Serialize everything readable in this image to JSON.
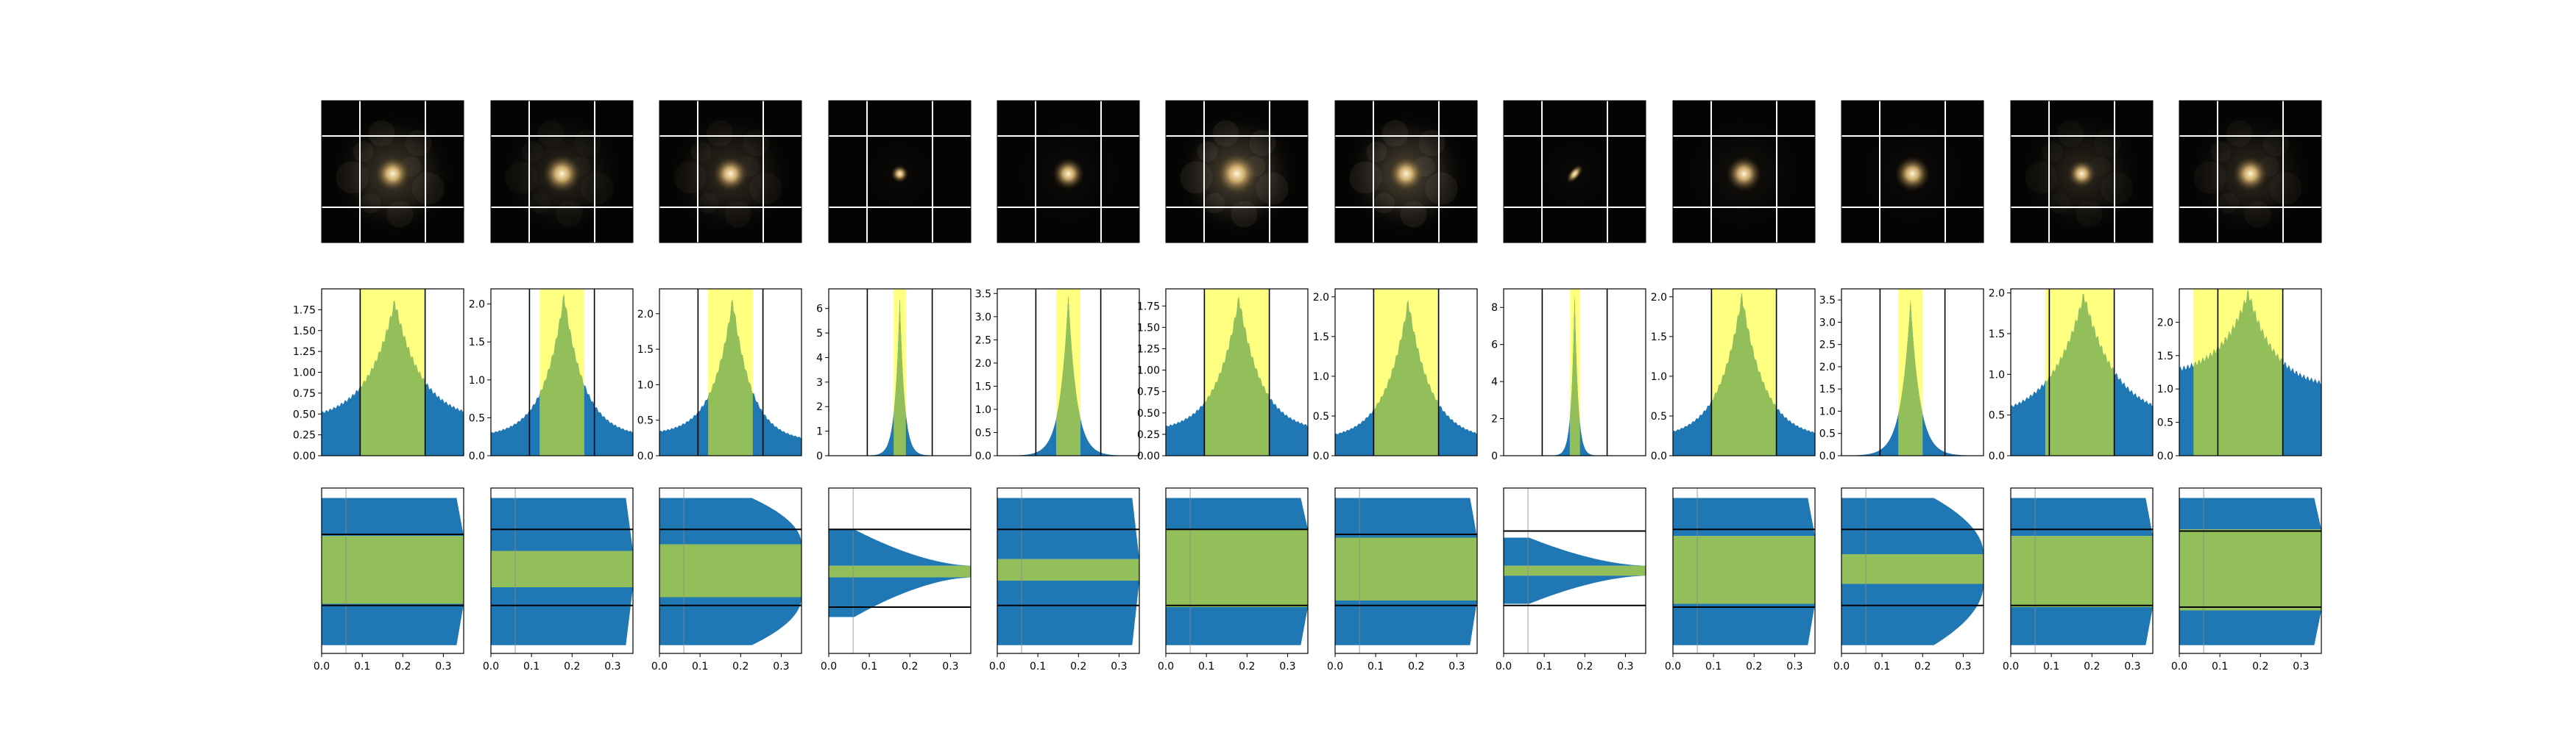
{
  "figure": {
    "n_columns": 12,
    "rows": [
      "galaxy images",
      "profile histograms",
      "cumulative bars"
    ]
  },
  "chart_data": [
    {
      "type": "image-grid",
      "description": "Galaxy images with overlaid white grid lines",
      "images": [
        {
          "core_size": 1.0,
          "diffuse": 0.8,
          "shape": "round"
        },
        {
          "core_size": 1.1,
          "diffuse": 0.5,
          "shape": "round"
        },
        {
          "core_size": 1.0,
          "diffuse": 0.6,
          "shape": "round"
        },
        {
          "core_size": 0.5,
          "diffuse": 0.0,
          "shape": "compact"
        },
        {
          "core_size": 0.9,
          "diffuse": 0.05,
          "shape": "round"
        },
        {
          "core_size": 1.2,
          "diffuse": 1.0,
          "shape": "round"
        },
        {
          "core_size": 1.0,
          "diffuse": 1.0,
          "shape": "round"
        },
        {
          "core_size": 0.7,
          "diffuse": 0.0,
          "shape": "elongated"
        },
        {
          "core_size": 1.0,
          "diffuse": 0.15,
          "shape": "round"
        },
        {
          "core_size": 1.0,
          "diffuse": 0.05,
          "shape": "round"
        },
        {
          "core_size": 0.8,
          "diffuse": 0.5,
          "shape": "round"
        },
        {
          "core_size": 1.0,
          "diffuse": 0.55,
          "shape": "round"
        }
      ]
    },
    {
      "type": "area",
      "description": "Distribution histograms with highlighted intervals",
      "xlim": [
        0,
        0.35
      ],
      "panels": [
        {
          "ylim": [
            0,
            2.0
          ],
          "yticks": [
            0.0,
            0.25,
            0.5,
            0.75,
            1.0,
            1.25,
            1.5,
            1.75
          ],
          "peak": 1.85,
          "center": 0.18,
          "width": 0.12,
          "base": 0.42,
          "right_base": 0.42,
          "highlight": [
            0.095,
            0.255
          ],
          "vlines": [
            0.095,
            0.255
          ]
        },
        {
          "ylim": [
            0,
            2.2
          ],
          "yticks": [
            0.0,
            0.5,
            1.0,
            1.5,
            2.0
          ],
          "peak": 2.12,
          "center": 0.18,
          "width": 0.09,
          "base": 0.25,
          "right_base": 0.25,
          "highlight": [
            0.12,
            0.23
          ],
          "vlines": [
            0.095,
            0.255
          ]
        },
        {
          "ylim": [
            0,
            2.35
          ],
          "yticks": [
            0.0,
            0.5,
            1.0,
            1.5,
            2.0
          ],
          "peak": 2.2,
          "center": 0.18,
          "width": 0.085,
          "base": 0.3,
          "right_base": 0.2,
          "highlight": [
            0.12,
            0.23
          ],
          "vlines": [
            0.095,
            0.255
          ]
        },
        {
          "ylim": [
            0,
            6.8
          ],
          "yticks": [
            0,
            1,
            2,
            3,
            4,
            5,
            6
          ],
          "peak": 6.4,
          "center": 0.175,
          "width": 0.025,
          "base": 0.0,
          "right_base": 0.0,
          "highlight": [
            0.16,
            0.19
          ],
          "vlines": [
            0.095,
            0.255
          ]
        },
        {
          "ylim": [
            0,
            3.6
          ],
          "yticks": [
            0.0,
            0.5,
            1.0,
            1.5,
            2.0,
            2.5,
            3.0,
            3.5
          ],
          "peak": 3.45,
          "center": 0.175,
          "width": 0.045,
          "base": 0.0,
          "right_base": 0.0,
          "highlight": [
            0.145,
            0.205
          ],
          "vlines": [
            0.095,
            0.255
          ]
        },
        {
          "ylim": [
            0,
            1.95
          ],
          "yticks": [
            0.0,
            0.25,
            0.5,
            0.75,
            1.0,
            1.25,
            1.5,
            1.75
          ],
          "peak": 1.85,
          "center": 0.18,
          "width": 0.1,
          "base": 0.28,
          "right_base": 0.28,
          "highlight": [
            0.095,
            0.255
          ],
          "vlines": [
            0.095,
            0.255
          ]
        },
        {
          "ylim": [
            0,
            2.1
          ],
          "yticks": [
            0.0,
            0.5,
            1.0,
            1.5,
            2.0
          ],
          "peak": 1.95,
          "center": 0.18,
          "width": 0.1,
          "base": 0.2,
          "right_base": 0.2,
          "highlight": [
            0.095,
            0.255
          ],
          "vlines": [
            0.095,
            0.255
          ]
        },
        {
          "ylim": [
            0,
            9.0
          ],
          "yticks": [
            0,
            2,
            4,
            6,
            8
          ],
          "peak": 8.6,
          "center": 0.175,
          "width": 0.018,
          "base": 0.0,
          "right_base": 0.0,
          "highlight": [
            0.163,
            0.188
          ],
          "vlines": [
            0.095,
            0.255
          ]
        },
        {
          "ylim": [
            0,
            2.1
          ],
          "yticks": [
            0.0,
            0.5,
            1.0,
            1.5,
            2.0
          ],
          "peak": 2.02,
          "center": 0.17,
          "width": 0.1,
          "base": 0.22,
          "right_base": 0.22,
          "highlight": [
            0.095,
            0.255
          ],
          "vlines": [
            0.095,
            0.255
          ]
        },
        {
          "ylim": [
            0,
            3.75
          ],
          "yticks": [
            0.0,
            0.5,
            1.0,
            1.5,
            2.0,
            2.5,
            3.0,
            3.5
          ],
          "peak": 3.5,
          "center": 0.17,
          "width": 0.05,
          "base": 0.05,
          "right_base": 0.05,
          "highlight": [
            0.14,
            0.2
          ],
          "vlines": [
            0.095,
            0.255
          ]
        },
        {
          "ylim": [
            0,
            2.05
          ],
          "yticks": [
            0.0,
            0.5,
            1.0,
            1.5,
            2.0
          ],
          "peak": 1.98,
          "center": 0.18,
          "width": 0.14,
          "base": 0.45,
          "right_base": 0.45,
          "highlight": [
            0.085,
            0.255
          ],
          "vlines": [
            0.095,
            0.255
          ]
        },
        {
          "ylim": [
            0,
            2.5
          ],
          "yticks": [
            0.0,
            0.5,
            1.0,
            1.5,
            2.0
          ],
          "peak": 2.45,
          "center": 0.17,
          "width": 0.12,
          "base": 1.2,
          "right_base": 1.0,
          "highlight": [
            0.035,
            0.255
          ],
          "vlines": [
            0.095,
            0.255
          ]
        }
      ]
    },
    {
      "type": "bar",
      "description": "Horizontal band plots with green highlighted interval",
      "xlim": [
        0,
        0.35
      ],
      "xticks": [
        0.0,
        0.1,
        0.2,
        0.3
      ],
      "xticklabels": [
        "0.0",
        "0.1",
        "0.2",
        "0.3"
      ],
      "panels": [
        {
          "top_band": [
            0.06,
            0.29
          ],
          "green": [
            0.29,
            0.7
          ],
          "bottom_band": [
            0.7,
            0.95
          ],
          "lines": [
            0.28,
            0.71
          ],
          "shape": "flat"
        },
        {
          "top_band": [
            0.06,
            0.38
          ],
          "green": [
            0.38,
            0.6
          ],
          "bottom_band": [
            0.6,
            0.95
          ],
          "lines": [
            0.25,
            0.71
          ],
          "shape": "flat"
        },
        {
          "top_band": [
            0.06,
            0.34
          ],
          "green": [
            0.34,
            0.66
          ],
          "bottom_band": [
            0.66,
            0.95
          ],
          "lines": [
            0.25,
            0.71
          ],
          "shape": "taper"
        },
        {
          "top_band": [
            0.25,
            0.47
          ],
          "green": [
            0.47,
            0.54
          ],
          "bottom_band": [
            0.54,
            0.78
          ],
          "lines": [
            0.25,
            0.72
          ],
          "shape": "funnel"
        },
        {
          "top_band": [
            0.06,
            0.43
          ],
          "green": [
            0.43,
            0.56
          ],
          "bottom_band": [
            0.56,
            0.95
          ],
          "lines": [
            0.25,
            0.71
          ],
          "shape": "flat"
        },
        {
          "top_band": [
            0.06,
            0.25
          ],
          "green": [
            0.25,
            0.72
          ],
          "bottom_band": [
            0.72,
            0.95
          ],
          "lines": [
            0.25,
            0.71
          ],
          "shape": "flat"
        },
        {
          "top_band": [
            0.06,
            0.3
          ],
          "green": [
            0.3,
            0.68
          ],
          "bottom_band": [
            0.68,
            0.95
          ],
          "lines": [
            0.28,
            0.71
          ],
          "shape": "flat"
        },
        {
          "top_band": [
            0.3,
            0.47
          ],
          "green": [
            0.47,
            0.53
          ],
          "bottom_band": [
            0.53,
            0.7
          ],
          "lines": [
            0.26,
            0.71
          ],
          "shape": "funnel"
        },
        {
          "top_band": [
            0.06,
            0.29
          ],
          "green": [
            0.29,
            0.7
          ],
          "bottom_band": [
            0.7,
            0.95
          ],
          "lines": [
            0.25,
            0.72
          ],
          "shape": "flat"
        },
        {
          "top_band": [
            0.06,
            0.4
          ],
          "green": [
            0.4,
            0.58
          ],
          "bottom_band": [
            0.58,
            0.95
          ],
          "lines": [
            0.25,
            0.71
          ],
          "shape": "taper"
        },
        {
          "top_band": [
            0.06,
            0.29
          ],
          "green": [
            0.29,
            0.72
          ],
          "bottom_band": [
            0.72,
            0.95
          ],
          "lines": [
            0.25,
            0.71
          ],
          "shape": "flat"
        },
        {
          "top_band": [
            0.06,
            0.25
          ],
          "green": [
            0.25,
            0.74
          ],
          "bottom_band": [
            0.74,
            0.95
          ],
          "lines": [
            0.26,
            0.72
          ],
          "shape": "flat"
        }
      ]
    }
  ],
  "colors": {
    "blue": "#1f77b4",
    "green": "#93bf5a",
    "yellow": "#ffff80",
    "grid": "#ffffff",
    "image_bg": "#050403"
  }
}
